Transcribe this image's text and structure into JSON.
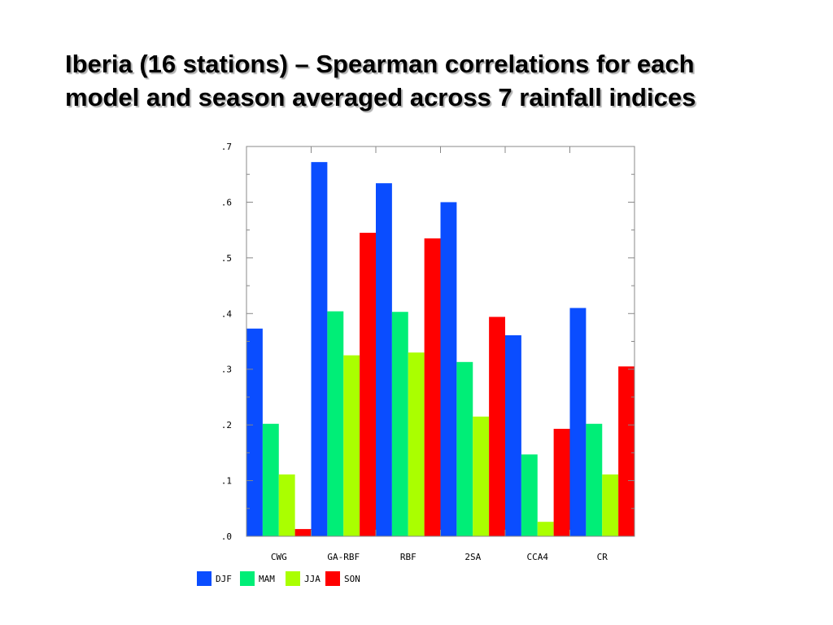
{
  "title": {
    "line1": "Iberia (16 stations) – Spearman correlations for each",
    "line2": "model and season averaged across 7 rainfall indices"
  },
  "chart_data": {
    "type": "bar",
    "categories": [
      "CWG",
      "GA-RBF",
      "RBF",
      "2SA",
      "CCA4",
      "CR"
    ],
    "series": [
      {
        "name": "DJF",
        "color": "#0a4dff",
        "values": [
          0.373,
          0.672,
          0.634,
          0.6,
          0.361,
          0.41
        ]
      },
      {
        "name": "MAM",
        "color": "#00ee77",
        "values": [
          0.202,
          0.404,
          0.403,
          0.313,
          0.147,
          0.202
        ]
      },
      {
        "name": "JJA",
        "color": "#aaff00",
        "values": [
          0.111,
          0.325,
          0.33,
          0.215,
          0.026,
          0.111
        ]
      },
      {
        "name": "SON",
        "color": "#ff0000",
        "values": [
          0.013,
          0.545,
          0.535,
          0.394,
          0.193,
          0.305
        ]
      }
    ],
    "ylim": [
      0,
      0.7
    ],
    "yticks": [
      0.0,
      0.1,
      0.2,
      0.3,
      0.4,
      0.5,
      0.6,
      0.7
    ],
    "ytick_labels": [
      ".0",
      ".1",
      ".2",
      ".3",
      ".4",
      ".5",
      ".6",
      ".7"
    ],
    "xlabel": "",
    "ylabel": "",
    "grid": false,
    "legend_position": "bottom-left"
  }
}
